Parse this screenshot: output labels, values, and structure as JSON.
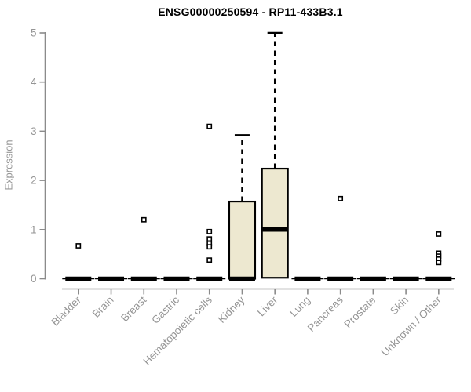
{
  "chart_data": {
    "type": "boxplot",
    "title": "ENSG00000250594 - RP11-433B3.1",
    "ylabel": "Expression",
    "xlabel": "",
    "ylim": [
      0,
      5
    ],
    "yticks": [
      0,
      1,
      2,
      3,
      4,
      5
    ],
    "grid": false,
    "legend": "none",
    "categories": [
      "Bladder",
      "Brain",
      "Breast",
      "Gastric",
      "Hematopoietic cells",
      "Kidney",
      "Liver",
      "Lung",
      "Pancreas",
      "Prostate",
      "Skin",
      "Unknown / Other"
    ],
    "boxes": [
      {
        "category": "Bladder",
        "q1": 0,
        "median": 0,
        "q3": 0,
        "whisker_low": 0,
        "whisker_high": 0,
        "outliers": [
          0.67
        ]
      },
      {
        "category": "Brain",
        "q1": 0,
        "median": 0,
        "q3": 0,
        "whisker_low": 0,
        "whisker_high": 0,
        "outliers": []
      },
      {
        "category": "Breast",
        "q1": 0,
        "median": 0,
        "q3": 0,
        "whisker_low": 0,
        "whisker_high": 0,
        "outliers": [
          1.2
        ]
      },
      {
        "category": "Gastric",
        "q1": 0,
        "median": 0,
        "q3": 0,
        "whisker_low": 0,
        "whisker_high": 0,
        "outliers": []
      },
      {
        "category": "Hematopoietic cells",
        "q1": 0,
        "median": 0,
        "q3": 0,
        "whisker_low": 0,
        "whisker_high": 0,
        "outliers": [
          3.1,
          0.96,
          0.81,
          0.72,
          0.65,
          0.38
        ]
      },
      {
        "category": "Kidney",
        "q1": 0,
        "median": 0,
        "q3": 1.57,
        "whisker_low": 0,
        "whisker_high": 2.92,
        "outliers": []
      },
      {
        "category": "Liver",
        "q1": 0.02,
        "median": 1.0,
        "q3": 2.24,
        "whisker_low": 0.02,
        "whisker_high": 5.0,
        "outliers": []
      },
      {
        "category": "Lung",
        "q1": 0,
        "median": 0,
        "q3": 0,
        "whisker_low": 0,
        "whisker_high": 0,
        "outliers": []
      },
      {
        "category": "Pancreas",
        "q1": 0,
        "median": 0,
        "q3": 0,
        "whisker_low": 0,
        "whisker_high": 0,
        "outliers": [
          1.63
        ]
      },
      {
        "category": "Prostate",
        "q1": 0,
        "median": 0,
        "q3": 0,
        "whisker_low": 0,
        "whisker_high": 0,
        "outliers": []
      },
      {
        "category": "Skin",
        "q1": 0,
        "median": 0,
        "q3": 0,
        "whisker_low": 0,
        "whisker_high": 0,
        "outliers": []
      },
      {
        "category": "Unknown / Other",
        "q1": 0,
        "median": 0,
        "q3": 0,
        "whisker_low": 0,
        "whisker_high": 0,
        "outliers": [
          0.91,
          0.52,
          0.46,
          0.4,
          0.33
        ]
      }
    ],
    "colors": {
      "box_fill": "#EDE8D0",
      "box_border": "#000000",
      "median": "#000000",
      "whisker": "#000000",
      "outlier_fill": "#ffffff",
      "outlier_border": "#000000",
      "axis": "#8b8b8b",
      "tick_label": "#959595",
      "title": "#000000"
    }
  }
}
